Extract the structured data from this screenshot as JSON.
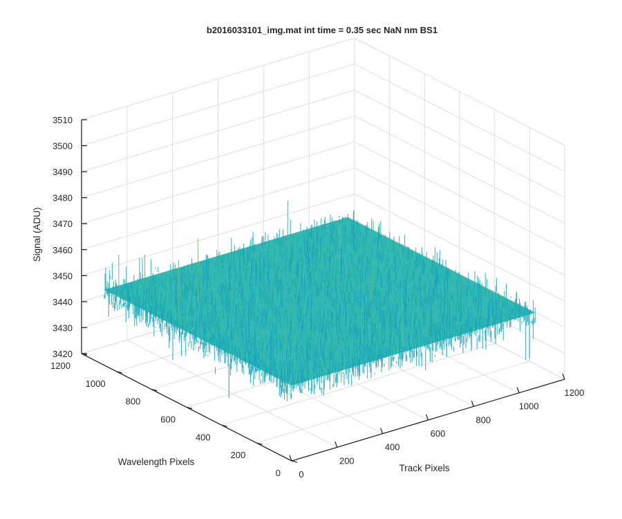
{
  "chart_data": {
    "type": "surface",
    "title": "b2016033101_img.mat int time = 0.35 sec  NaN nm BS1",
    "xlabel": "Track Pixels",
    "ylabel": "Wavelength Pixels",
    "zlabel": "Signal (ADU)",
    "xlim": [
      0,
      1200
    ],
    "ylim": [
      0,
      1200
    ],
    "zlim": [
      3420,
      3510
    ],
    "x_ticks": [
      "0",
      "200",
      "400",
      "600",
      "800",
      "1000",
      "1200"
    ],
    "y_ticks": [
      "0",
      "200",
      "400",
      "600",
      "800",
      "1000",
      "1200"
    ],
    "z_ticks": [
      "3420",
      "3430",
      "3440",
      "3450",
      "3460",
      "3470",
      "3480",
      "3490",
      "3500",
      "3510"
    ],
    "surface": {
      "x_range": [
        0,
        1070
      ],
      "y_range": [
        0,
        1070
      ],
      "mean": 3449,
      "noise_range": [
        3428,
        3490
      ],
      "colormap": "parula"
    },
    "grid": true,
    "colors": {
      "low": "#0b8ed6",
      "mid": "#22b3aa",
      "high": "#d6c640"
    }
  }
}
